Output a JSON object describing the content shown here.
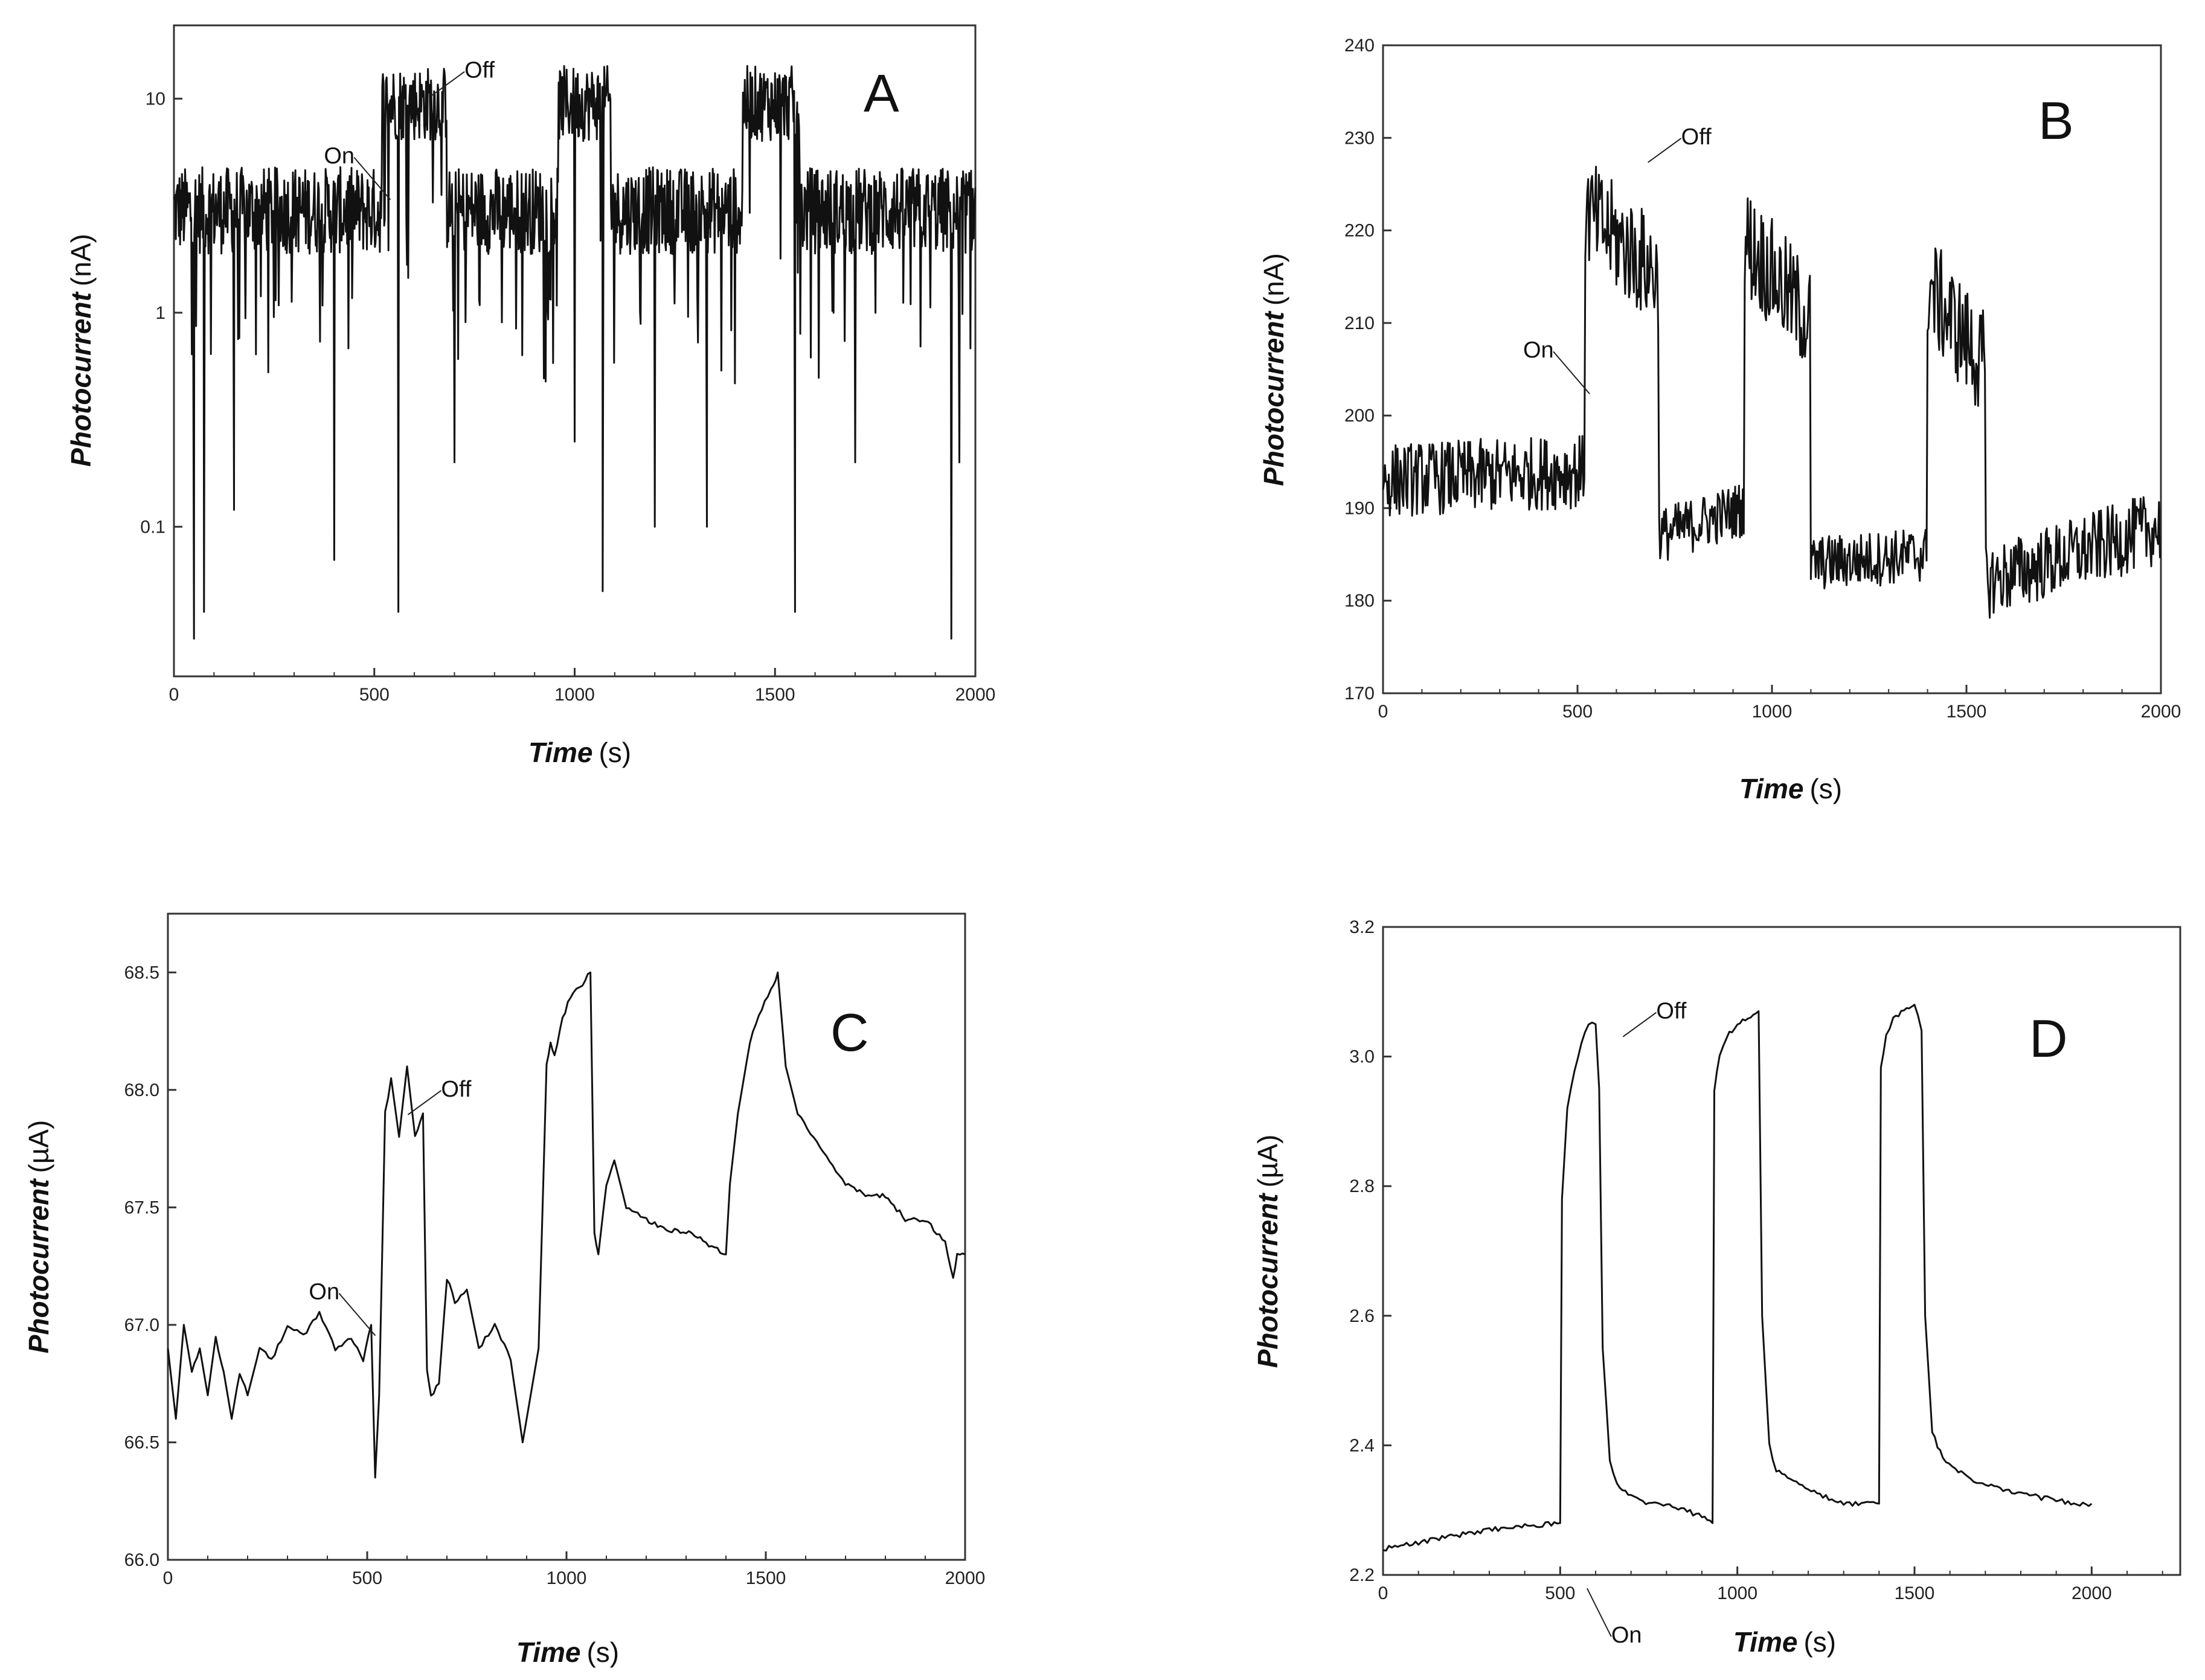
{
  "chart_data": [
    {
      "panel": "A",
      "type": "line",
      "scale_y": "log",
      "xlabel": "Time",
      "xunit": "(s)",
      "ylabel": "Photocurrent",
      "yunit": "(nA)",
      "xlim": [
        0,
        2000
      ],
      "ylim": [
        0.02,
        22
      ],
      "xticks": [
        0,
        500,
        1000,
        1500,
        2000
      ],
      "yticks": [
        0.1,
        1,
        10
      ],
      "ytick_labels": [
        "0.1",
        "1",
        "10"
      ],
      "annotations": [
        {
          "text": "On",
          "x": 510,
          "y": 3.6
        },
        {
          "text": "Off",
          "x": 680,
          "y": 11
        }
      ],
      "on_intervals": [
        [
          520,
          680
        ],
        [
          960,
          1090
        ],
        [
          1420,
          1560
        ]
      ],
      "series": [
        {
          "base_level": 3.0,
          "base_spread": 1.6,
          "on_level": 9.5,
          "on_spread": 1.5,
          "dips": [
            [
              50,
              0.03
            ],
            [
              75,
              0.04
            ],
            [
              150,
              0.12
            ],
            [
              400,
              0.07
            ],
            [
              560,
              0.04
            ],
            [
              700,
              0.2
            ],
            [
              1000,
              0.25
            ],
            [
              1070,
              0.05
            ],
            [
              1200,
              0.1
            ],
            [
              1330,
              0.1
            ],
            [
              1550,
              0.04
            ],
            [
              1700,
              0.2
            ],
            [
              1940,
              0.03
            ],
            [
              1960,
              0.2
            ]
          ]
        }
      ]
    },
    {
      "panel": "B",
      "type": "line",
      "xlabel": "Time",
      "xunit": "(s)",
      "ylabel": "Photocurrent",
      "yunit": "(nA)",
      "xlim": [
        0,
        2000
      ],
      "ylim": [
        170,
        240
      ],
      "xticks": [
        0,
        500,
        1000,
        1500,
        2000
      ],
      "yticks": [
        170,
        180,
        190,
        200,
        210,
        220,
        230,
        240
      ],
      "annotations": [
        {
          "text": "On",
          "x": 500,
          "y": 203
        },
        {
          "text": "Off",
          "x": 720,
          "y": 228
        }
      ],
      "series": [
        {
          "segments": [
            {
              "x0": 0,
              "x1": 520,
              "y0": 193,
              "y1": 194,
              "noise": 4
            },
            {
              "x0": 520,
              "x1": 710,
              "y0": 222,
              "y1": 215,
              "noise": 6
            },
            {
              "x0": 710,
              "x1": 930,
              "y0": 187,
              "y1": 190,
              "noise": 3
            },
            {
              "x0": 930,
              "x1": 1100,
              "y0": 219,
              "y1": 210,
              "noise": 6
            },
            {
              "x0": 1100,
              "x1": 1400,
              "y0": 184,
              "y1": 185,
              "noise": 3
            },
            {
              "x0": 1400,
              "x1": 1550,
              "y0": 214,
              "y1": 205,
              "noise": 6
            },
            {
              "x0": 1550,
              "x1": 2000,
              "y0": 182,
              "y1": 188,
              "noise": 4
            }
          ]
        }
      ]
    },
    {
      "panel": "C",
      "type": "line",
      "xlabel": "Time",
      "xunit": "(s)",
      "ylabel": "Photocurrent",
      "yunit": "(µA)",
      "xlim": [
        0,
        2000
      ],
      "ylim": [
        66.0,
        68.75
      ],
      "xticks": [
        0,
        500,
        1000,
        1500,
        2000
      ],
      "yticks": [
        66.0,
        66.5,
        67.0,
        67.5,
        68.0,
        68.5
      ],
      "ytick_labels": [
        "66.0",
        "66.5",
        "67.0",
        "67.5",
        "68.0",
        "68.5"
      ],
      "annotations": [
        {
          "text": "On",
          "x": 490,
          "y": 66.98
        },
        {
          "text": "Off",
          "x": 640,
          "y": 67.92
        }
      ],
      "series": [
        {
          "x": [
            0,
            20,
            40,
            60,
            80,
            100,
            120,
            140,
            160,
            180,
            200,
            230,
            260,
            300,
            340,
            380,
            420,
            460,
            490,
            510,
            520,
            530,
            545,
            560,
            580,
            600,
            620,
            640,
            650,
            660,
            680,
            700,
            720,
            750,
            780,
            820,
            860,
            890,
            910,
            930,
            950,
            960,
            970,
            990,
            1010,
            1040,
            1060,
            1070,
            1080,
            1100,
            1120,
            1150,
            1200,
            1250,
            1300,
            1350,
            1400,
            1410,
            1430,
            1460,
            1490,
            1520,
            1530,
            1550,
            1580,
            1620,
            1660,
            1700,
            1750,
            1800,
            1850,
            1900,
            1950,
            1970,
            1980,
            2000
          ],
          "y": [
            66.9,
            66.6,
            67.0,
            66.8,
            66.9,
            66.7,
            66.95,
            66.8,
            66.6,
            66.8,
            66.7,
            66.9,
            66.85,
            67.0,
            66.95,
            67.05,
            66.9,
            66.95,
            66.85,
            67.0,
            66.35,
            66.7,
            67.9,
            68.05,
            67.8,
            68.1,
            67.8,
            67.9,
            66.8,
            66.7,
            66.75,
            67.2,
            67.1,
            67.15,
            66.9,
            67.0,
            66.85,
            66.5,
            66.7,
            66.9,
            68.1,
            68.2,
            68.15,
            68.3,
            68.4,
            68.45,
            68.5,
            67.4,
            67.3,
            67.6,
            67.7,
            67.5,
            67.45,
            67.4,
            67.4,
            67.35,
            67.3,
            67.6,
            67.9,
            68.2,
            68.35,
            68.45,
            68.5,
            68.1,
            67.9,
            67.8,
            67.7,
            67.6,
            67.55,
            67.55,
            67.45,
            67.45,
            67.35,
            67.2,
            67.3,
            67.3
          ]
        }
      ]
    },
    {
      "panel": "D",
      "type": "line",
      "xlabel": "Time",
      "xunit": "(s)",
      "ylabel": "Photocurrent",
      "yunit": "(µA)",
      "xlim": [
        0,
        2250
      ],
      "ylim": [
        2.2,
        3.2
      ],
      "xticks": [
        0,
        500,
        1000,
        1500,
        2000
      ],
      "yticks": [
        2.2,
        2.4,
        2.6,
        2.8,
        3.0,
        3.2
      ],
      "ytick_labels": [
        "2.2",
        "2.4",
        "2.6",
        "2.8",
        "3.0",
        "3.2"
      ],
      "annotations": [
        {
          "text": "On",
          "x": 610,
          "y": 2.17
        },
        {
          "text": "Off",
          "x": 720,
          "y": 3.04
        }
      ],
      "series": [
        {
          "x": [
            0,
            100,
            200,
            300,
            400,
            500,
            505,
            520,
            540,
            560,
            580,
            600,
            610,
            620,
            640,
            660,
            700,
            750,
            800,
            850,
            900,
            930,
            935,
            950,
            970,
            1000,
            1030,
            1060,
            1070,
            1090,
            1110,
            1150,
            1200,
            1250,
            1300,
            1350,
            1400,
            1405,
            1420,
            1440,
            1470,
            1500,
            1520,
            1530,
            1550,
            1580,
            1650,
            1750,
            1850,
            1950,
            2000
          ],
          "y": [
            2.24,
            2.25,
            2.26,
            2.27,
            2.275,
            2.28,
            2.78,
            2.92,
            2.98,
            3.02,
            3.05,
            3.05,
            2.95,
            2.55,
            2.38,
            2.34,
            2.32,
            2.31,
            2.31,
            2.3,
            2.29,
            2.28,
            2.95,
            3.0,
            3.03,
            3.05,
            3.06,
            3.07,
            2.6,
            2.4,
            2.36,
            2.35,
            2.33,
            2.32,
            2.31,
            2.31,
            2.31,
            2.98,
            3.03,
            3.06,
            3.07,
            3.08,
            3.04,
            2.6,
            2.42,
            2.38,
            2.35,
            2.33,
            2.32,
            2.31,
            2.31
          ]
        }
      ]
    }
  ]
}
